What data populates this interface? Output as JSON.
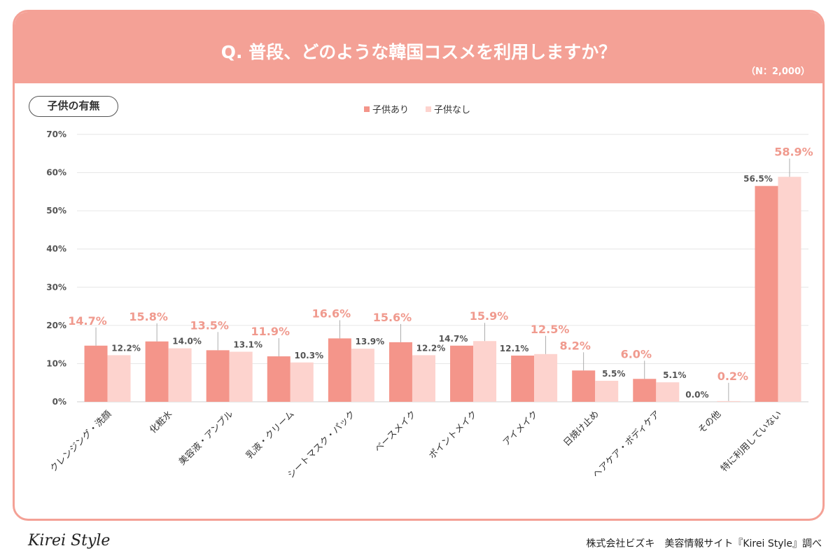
{
  "header": {
    "title": "Q. 普段、どのような韓国コスメを利用しますか？",
    "sample": "（N：2,000）"
  },
  "filter_label": "子供の有無",
  "footer": {
    "logo": "Kirei Style",
    "source": "株式会社ビズキ　美容情報サイト『Kirei Style』調べ"
  },
  "colors": {
    "series1": "#f4958a",
    "series2": "#fdd3ce",
    "highlight_label": "#f09a8e",
    "plain_label": "#555555",
    "header": "#f4a196"
  },
  "chart_data": {
    "type": "bar",
    "title": "Q. 普段、どのような韓国コスメを利用しますか？",
    "categories": [
      "クレンジング・洗顔",
      "化粧水",
      "美容液・アンプル",
      "乳液・クリーム",
      "シートマスク・パック",
      "ベースメイク",
      "ポイントメイク",
      "アイメイク",
      "日焼け止め",
      "ヘアケア・ボディケア",
      "その他",
      "特に利用していない"
    ],
    "series": [
      {
        "name": "子供あり",
        "values": [
          14.7,
          15.8,
          13.5,
          11.9,
          16.6,
          15.6,
          14.7,
          12.1,
          8.2,
          6.0,
          0.0,
          56.5
        ]
      },
      {
        "name": "子供なし",
        "values": [
          12.2,
          14.0,
          13.1,
          10.3,
          13.9,
          12.2,
          15.9,
          12.5,
          5.5,
          5.1,
          0.2,
          58.9
        ]
      }
    ],
    "yticks": [
      "0%",
      "10%",
      "20%",
      "30%",
      "40%",
      "50%",
      "60%",
      "70%"
    ],
    "ylim": [
      0,
      70
    ],
    "grid": true,
    "legend": "top-center",
    "unit": "%"
  }
}
